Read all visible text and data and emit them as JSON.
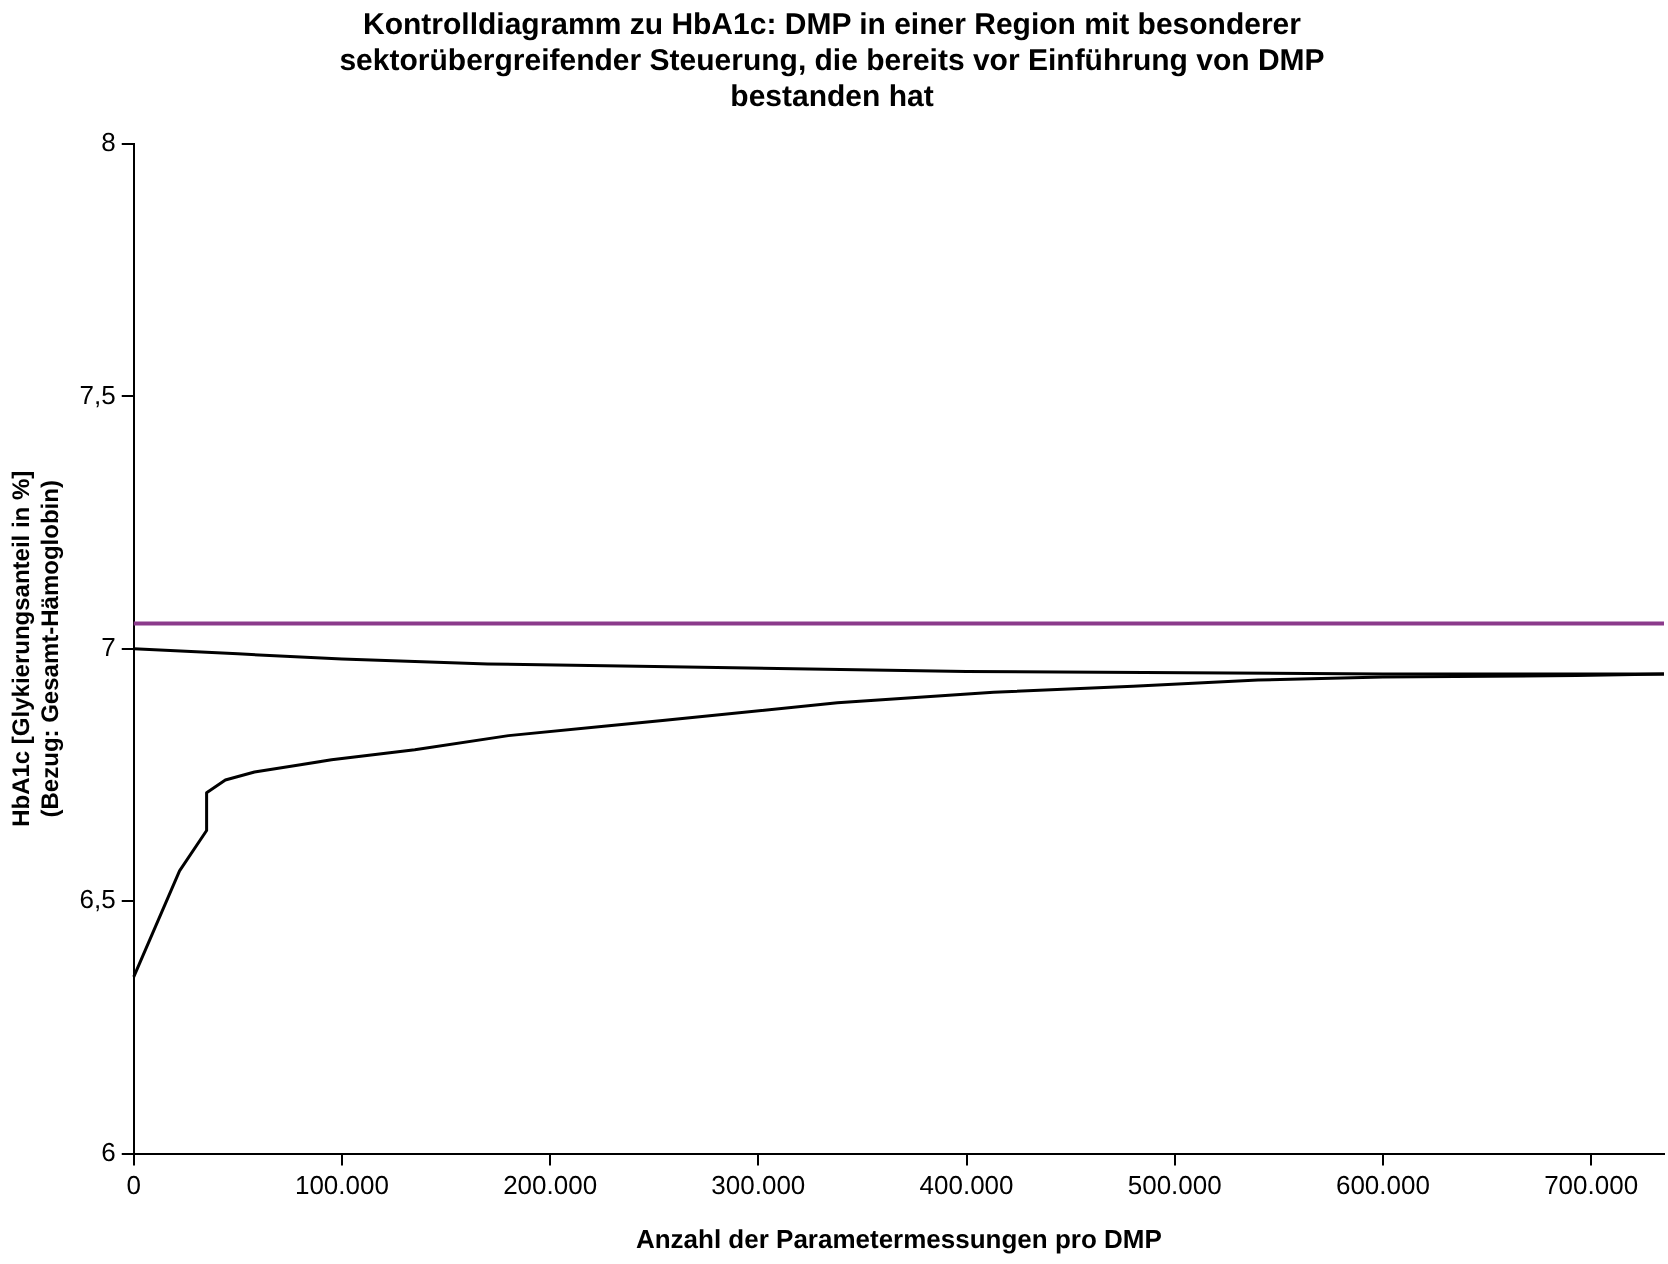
{
  "chart_data": {
    "type": "line",
    "title": "Kontrolldiagramm zu HbA1c: DMP in einer Region mit besonderer sektorübergreifender Steuerung, die bereits vor Einführung von DMP bestanden hat",
    "xlabel": "Anzahl der Parametermessungen pro DMP",
    "ylabel": "HbA1c [Glykierungsanteil in %] (Bezug: Gesamt-Hämoglobin)",
    "series": [
      {
        "color": "#000000",
        "x": [
          0,
          50000,
          100000,
          170000,
          250000,
          400000,
          600000,
          735000
        ],
        "values": [
          7.0,
          6.99,
          6.98,
          6.97,
          6.965,
          6.955,
          6.95,
          6.95
        ]
      },
      {
        "color": "#000000",
        "x": [
          0,
          22000,
          35000,
          35000,
          44000,
          58000,
          95000,
          135000,
          180000,
          227000,
          254000,
          338000,
          413000,
          480000,
          540000,
          600000,
          693000,
          735000
        ],
        "values": [
          6.35,
          6.56,
          6.64,
          6.715,
          6.74,
          6.756,
          6.78,
          6.8,
          6.828,
          6.847,
          6.858,
          6.893,
          6.914,
          6.926,
          6.938,
          6.944,
          6.947,
          6.95
        ]
      }
    ],
    "ref_lines": [
      {
        "axis": "y",
        "value": 7.05,
        "color": "#8b3a8b"
      }
    ],
    "xlim": [
      0,
      735000
    ],
    "xticks": [
      0,
      {
        "value": 100000,
        "label": "100.000"
      },
      {
        "value": 200000,
        "label": "200.000"
      },
      {
        "value": 300000,
        "label": "300.000"
      },
      {
        "value": 400000,
        "label": "400.000"
      },
      {
        "value": 500000,
        "label": "500.000"
      },
      {
        "value": 600000,
        "label": "600.000"
      },
      {
        "value": 700000,
        "label": "700.000"
      }
    ],
    "ylim": [
      6,
      8
    ],
    "yticks": [
      6,
      {
        "value": 6.5,
        "label": "6,5"
      },
      7,
      {
        "value": 7.5,
        "label": "7,5"
      },
      8
    ],
    "grid": false,
    "legend": false,
    "marker": "none",
    "line_style": "solid"
  }
}
